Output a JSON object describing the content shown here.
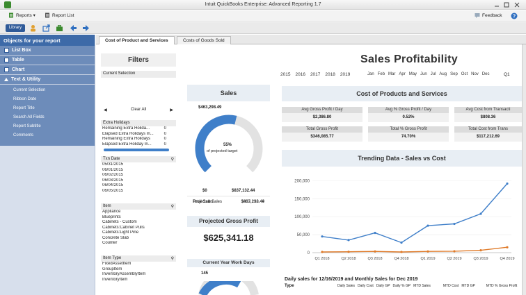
{
  "window": {
    "title": "Intuit QuickBooks Enterprise: Advanced Reporting 1.7"
  },
  "menu": {
    "reports": "Reports ▾",
    "report_list": "Report List",
    "feedback": "Feedback"
  },
  "toolbar": {
    "library": "Library"
  },
  "sidebar": {
    "header": "Objects for your report",
    "items": [
      {
        "label": "List Box"
      },
      {
        "label": "Table"
      },
      {
        "label": "Chart"
      },
      {
        "label": "Text & Utility"
      }
    ],
    "sub_items": [
      {
        "label": "Current Selection"
      },
      {
        "label": "Ribbon Date"
      },
      {
        "label": "Report Title"
      },
      {
        "label": "Search All Fields"
      },
      {
        "label": "Report Subtitle"
      },
      {
        "label": "Comments"
      }
    ]
  },
  "tabs": [
    {
      "label": "Cost of Product and Services"
    },
    {
      "label": "Costs of Goods Sold"
    }
  ],
  "filters": {
    "title": "Filters",
    "current_selection": "Current Selection",
    "clear_all": "Clear All",
    "extra_holidays": {
      "header": "Extra Holidays",
      "rows": [
        {
          "label": "Remaining Extra Holida...",
          "value": "0"
        },
        {
          "label": "Elapsed Extra Holidays In...",
          "value": "0"
        },
        {
          "label": "Remaining Extra Holidays",
          "value": "0"
        },
        {
          "label": "Elapsed Extra Holiday In...",
          "value": "0"
        }
      ]
    },
    "txn_date": {
      "header": "Txn Date",
      "rows": [
        "05/31/2015",
        "06/01/2015",
        "06/02/2015",
        "06/03/2015",
        "06/04/2015",
        "06/05/2015"
      ]
    },
    "item": {
      "header": "Item",
      "rows": [
        "Appliance",
        "Blueprints",
        "Cabinets - Custom",
        "Cabinets:Cabinet Pulls",
        "Cabinets:Light Pine",
        "Concrete Slab",
        "Counter"
      ]
    },
    "item_type": {
      "header": "Item Type",
      "rows": [
        "FixedAssetItem",
        "GroupItem",
        "InventoryAssemblyItem",
        "InventoryItem"
      ]
    }
  },
  "sales": {
    "title": "Sales",
    "gauge_value": "$463,298.49",
    "percent": "55%",
    "percent_caption": "of projected target",
    "percent_value": 0.55,
    "min": "$0",
    "max": "$837,132.44",
    "rows": [
      {
        "label": "Total Sales",
        "value": "$463,298.49"
      },
      {
        "label": "Projected Sales",
        "value": "$837,132.44"
      }
    ]
  },
  "projected_gross_profit": {
    "title": "Projected Gross Profit",
    "value": "$625,341.18"
  },
  "current_year_work_days": {
    "title": "Current Year Work Days",
    "value": "145"
  },
  "report": {
    "title": "Sales Profitability",
    "years": [
      "2015",
      "2016",
      "2017",
      "2018",
      "2019"
    ],
    "months": [
      "Jan",
      "Feb",
      "Mar",
      "Apr",
      "May",
      "Jun",
      "Jul",
      "Aug",
      "Sep",
      "Oct",
      "Nov",
      "Dec"
    ],
    "quarter": "Q1"
  },
  "cost_section": {
    "title": "Cost of Products and Services",
    "kpis": [
      {
        "label": "Avg Gross Profit / Day",
        "value": "$2,386.80"
      },
      {
        "label": "Avg % Gross Profit / Day",
        "value": "0.52%"
      },
      {
        "label": "Avg Cost from Transacti",
        "value": "$808.36"
      },
      {
        "label": "Total Gross Profit",
        "value": "$346,085.77"
      },
      {
        "label": "Total % Gross Profit",
        "value": "74.70%"
      },
      {
        "label": "Total Cost from Trans",
        "value": "$117,212.69"
      }
    ]
  },
  "trend": {
    "title": "Trending Data - Sales vs Cost"
  },
  "chart_data": {
    "type": "line",
    "title": "Trending Data - Sales vs Cost",
    "categories": [
      "Q1 2018",
      "Q2 2018",
      "Q3 2018",
      "Q4 2018",
      "Q1 2019",
      "Q2 2019",
      "Q3 2019",
      "Q4 2019"
    ],
    "y_ticks": [
      "200,000",
      "150,000",
      "100,000",
      "50,000",
      "0"
    ],
    "ylim": [
      0,
      220000
    ],
    "series": [
      {
        "values": [
          45000,
          35000,
          55000,
          28000,
          75000,
          80000,
          108000,
          192000
        ],
        "color": "#3f7fc9"
      },
      {
        "values": [
          2000,
          2500,
          3500,
          2000,
          3500,
          4000,
          6500,
          15000
        ],
        "color": "#e07b2a"
      }
    ]
  },
  "daily_sales": {
    "title": "Daily sales for 12/16/2019 and Monthly Sales for Dec 2019",
    "columns": [
      "Type",
      "Daily Sales",
      "Daily Cost",
      "Daily GP",
      "Daily % GP",
      "MTD Sales",
      "MTD Cost",
      "MTD GP",
      "MTD % Gross Profit"
    ]
  },
  "colors": {
    "accent": "#3f7fc9",
    "sidebar_header": "#3d6aa8",
    "sidebar_row": "#6d8cba",
    "cost_line": "#e07b2a"
  }
}
